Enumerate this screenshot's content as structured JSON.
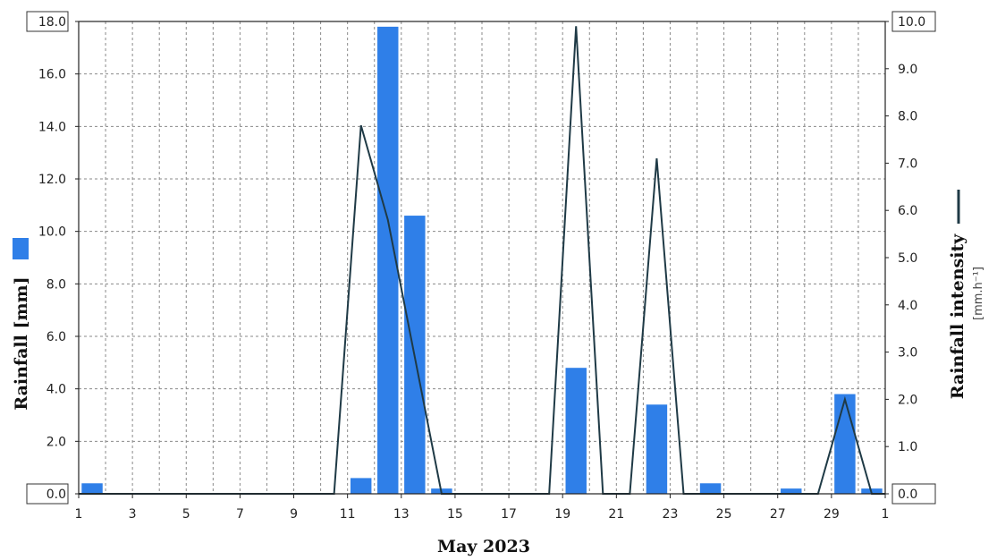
{
  "chart_data": {
    "type": "bar",
    "xlabel": "May 2023",
    "ylabel": "Rainfall [mm]",
    "y2label": "Rainfall intensity",
    "y2unit": "[mm.h⁻¹]",
    "x_tick_labels": [
      "1",
      "3",
      "5",
      "7",
      "9",
      "11",
      "13",
      "15",
      "17",
      "19",
      "21",
      "23",
      "25",
      "27",
      "29",
      "1"
    ],
    "ylim": [
      0,
      18
    ],
    "y_ticks": [
      "0.0",
      "2.0",
      "4.0",
      "6.0",
      "8.0",
      "10.0",
      "12.0",
      "14.0",
      "16.0",
      "18.0"
    ],
    "y2lim": [
      0,
      10
    ],
    "y2_ticks": [
      "0.0",
      "1.0",
      "2.0",
      "3.0",
      "4.0",
      "5.0",
      "6.0",
      "7.0",
      "8.0",
      "9.0",
      "10.0"
    ],
    "grid": true,
    "bar_color": "#2f7fe8",
    "line_color": "#1f3a46",
    "series": [
      {
        "type": "bar",
        "axis": "left",
        "days": [
          1,
          2,
          3,
          4,
          5,
          6,
          7,
          8,
          9,
          10,
          11,
          12,
          13,
          14,
          15,
          16,
          17,
          18,
          19,
          20,
          21,
          22,
          23,
          24,
          25,
          26,
          27,
          28,
          29,
          30
        ],
        "values": [
          0.4,
          0,
          0,
          0,
          0,
          0,
          0,
          0,
          0,
          0,
          0.6,
          17.8,
          10.6,
          0.2,
          0,
          0,
          0,
          0,
          4.8,
          0,
          0,
          3.4,
          0,
          0.4,
          0,
          0,
          0.2,
          0,
          3.8,
          0.2
        ]
      },
      {
        "type": "line",
        "axis": "right",
        "points": [
          [
            1,
            0
          ],
          [
            10.5,
            0
          ],
          [
            11.5,
            7.8
          ],
          [
            12.5,
            5.8
          ],
          [
            14.5,
            0
          ],
          [
            18.5,
            0
          ],
          [
            19.5,
            9.9
          ],
          [
            20.5,
            0
          ],
          [
            21.5,
            0
          ],
          [
            22.5,
            7.1
          ],
          [
            23.5,
            0
          ],
          [
            28.5,
            0
          ],
          [
            29.5,
            2.0
          ],
          [
            30.5,
            0
          ],
          [
            31,
            0
          ]
        ]
      }
    ]
  }
}
